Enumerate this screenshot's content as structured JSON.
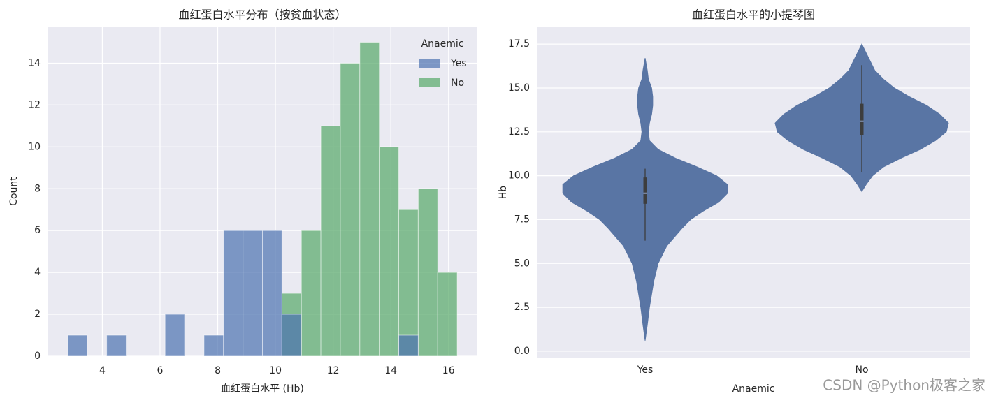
{
  "chart_data": [
    {
      "type": "histogram",
      "title": "血红蛋白水平分布（按贫血状态）",
      "xlabel": "血红蛋白水平 (Hb)",
      "ylabel": "Count",
      "bins": [
        2.8,
        3.475,
        4.15,
        4.825,
        5.5,
        6.175,
        6.85,
        7.525,
        8.2,
        8.875,
        9.55,
        10.225,
        10.9,
        11.575,
        12.25,
        12.925,
        13.6,
        14.275,
        14.95,
        15.625,
        16.3
      ],
      "series": [
        {
          "name": "Yes",
          "color": "#4c72b0",
          "values": [
            1,
            0,
            1,
            0,
            0,
            2,
            0,
            1,
            6,
            6,
            6,
            2,
            0,
            0,
            0,
            0,
            0,
            1,
            0,
            0
          ]
        },
        {
          "name": "No",
          "color": "#55a868",
          "values": [
            0,
            0,
            0,
            0,
            0,
            0,
            0,
            0,
            0,
            0,
            0,
            3,
            6,
            11,
            14,
            15,
            10,
            7,
            8,
            4
          ]
        }
      ],
      "legend_title": "Anaemic",
      "legend": "upper right",
      "xlim": [
        2.1,
        17.0
      ],
      "xticks": [
        4,
        6,
        8,
        10,
        12,
        14,
        16
      ],
      "ylim": [
        0,
        15.75
      ],
      "yticks": [
        0,
        2,
        4,
        6,
        8,
        10,
        12,
        14
      ],
      "grid": true
    },
    {
      "type": "violin",
      "title": "血红蛋白水平的小提琴图",
      "xlabel": "Anaemic",
      "ylabel": "Hb",
      "categories": [
        "Yes",
        "No"
      ],
      "color": "#5975a4",
      "violins": [
        {
          "y": [
            0.6,
            1.5,
            2.5,
            4,
            5,
            6,
            7,
            7.5,
            8,
            8.5,
            9,
            9.5,
            10,
            10.5,
            11,
            11.5,
            12,
            12.5,
            13,
            13.5,
            14,
            14.5,
            15,
            15.5,
            16,
            16.7
          ],
          "density": [
            0,
            0.01,
            0.02,
            0.04,
            0.06,
            0.1,
            0.17,
            0.21,
            0.27,
            0.34,
            0.38,
            0.38,
            0.33,
            0.24,
            0.14,
            0.06,
            0.02,
            0.015,
            0.02,
            0.03,
            0.035,
            0.035,
            0.03,
            0.015,
            0.01,
            0
          ],
          "whisker": [
            6.3,
            10.4
          ],
          "box": [
            8.4,
            9.9
          ],
          "median": 9.0
        },
        {
          "y": [
            9.1,
            9.5,
            10,
            10.5,
            11,
            11.5,
            12,
            12.5,
            13,
            13.5,
            14,
            14.5,
            15,
            15.5,
            16,
            16.5,
            17,
            17.5
          ],
          "density": [
            0,
            0.02,
            0.05,
            0.1,
            0.18,
            0.27,
            0.34,
            0.39,
            0.4,
            0.36,
            0.3,
            0.22,
            0.15,
            0.1,
            0.06,
            0.04,
            0.02,
            0
          ],
          "whisker": [
            10.2,
            16.3
          ],
          "box": [
            12.3,
            14.1
          ],
          "median": 13.1
        }
      ],
      "ylim": [
        -0.4,
        18.5
      ],
      "yticks": [
        {
          "value": 0,
          "label": "0.0"
        },
        2.5,
        {
          "value": 5,
          "label": "5.0"
        },
        7.5,
        {
          "value": 10,
          "label": "10.0"
        },
        12.5,
        {
          "value": 15,
          "label": "15.0"
        },
        17.5
      ],
      "grid": "y"
    }
  ],
  "watermark": "CSDN @Python极客之家"
}
